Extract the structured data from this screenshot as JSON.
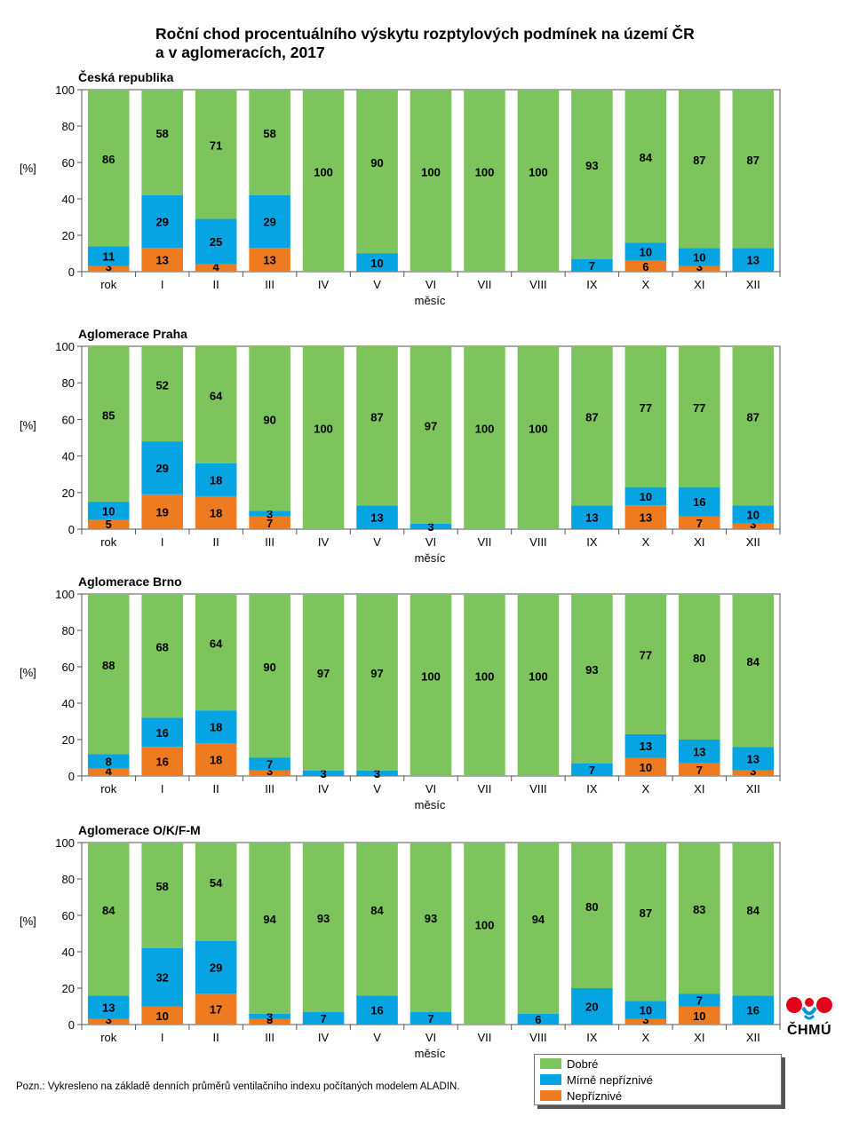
{
  "title_line1": "Roční chod procentuálního výskytu rozptylových podmínek na území ČR",
  "title_line2": "a v aglomeracích, 2017",
  "note": "Pozn.: Vykresleno na základě denních průměrů ventilačního indexu počítaných modelem ALADIN.",
  "logo_text": "ČHMÚ",
  "legend": [
    {
      "label": "Dobré",
      "color": "#7cc45b"
    },
    {
      "label": "Mírně nepříznivé",
      "color": "#06a4e2"
    },
    {
      "label": "Nepříznivé",
      "color": "#ef7b21"
    }
  ],
  "chart_data": [
    {
      "type": "bar",
      "title": "Česká republika",
      "xlabel": "měsíc",
      "ylabel": "[%]",
      "ylim": [
        0,
        100
      ],
      "yticks": [
        0,
        20,
        40,
        60,
        80,
        100
      ],
      "categories": [
        "rok",
        "I",
        "II",
        "III",
        "IV",
        "V",
        "VI",
        "VII",
        "VIII",
        "IX",
        "X",
        "XI",
        "XII"
      ],
      "series": [
        {
          "name": "Nepříznivé",
          "values": [
            3,
            13,
            4,
            13,
            0,
            0,
            0,
            0,
            0,
            0,
            6,
            3,
            0
          ]
        },
        {
          "name": "Mírně nepříznivé",
          "values": [
            11,
            29,
            25,
            29,
            0,
            10,
            0,
            0,
            0,
            7,
            10,
            10,
            13
          ]
        },
        {
          "name": "Dobré",
          "values": [
            86,
            58,
            71,
            58,
            100,
            90,
            100,
            100,
            100,
            93,
            84,
            87,
            87
          ]
        }
      ]
    },
    {
      "type": "bar",
      "title": "Aglomerace Praha",
      "xlabel": "měsíc",
      "ylabel": "[%]",
      "ylim": [
        0,
        100
      ],
      "yticks": [
        0,
        20,
        40,
        60,
        80,
        100
      ],
      "categories": [
        "rok",
        "I",
        "II",
        "III",
        "IV",
        "V",
        "VI",
        "VII",
        "VIII",
        "IX",
        "X",
        "XI",
        "XII"
      ],
      "series": [
        {
          "name": "Nepříznivé",
          "values": [
            5,
            19,
            18,
            7,
            0,
            0,
            0,
            0,
            0,
            0,
            13,
            7,
            3
          ]
        },
        {
          "name": "Mírně nepříznivé",
          "values": [
            10,
            29,
            18,
            3,
            0,
            13,
            3,
            0,
            0,
            13,
            10,
            16,
            10
          ]
        },
        {
          "name": "Dobré",
          "values": [
            85,
            52,
            64,
            90,
            100,
            87,
            97,
            100,
            100,
            87,
            77,
            77,
            87
          ]
        }
      ]
    },
    {
      "type": "bar",
      "title": "Aglomerace Brno",
      "xlabel": "měsíc",
      "ylabel": "[%]",
      "ylim": [
        0,
        100
      ],
      "yticks": [
        0,
        20,
        40,
        60,
        80,
        100
      ],
      "categories": [
        "rok",
        "I",
        "II",
        "III",
        "IV",
        "V",
        "VI",
        "VII",
        "VIII",
        "IX",
        "X",
        "XI",
        "XII"
      ],
      "series": [
        {
          "name": "Nepříznivé",
          "values": [
            4,
            16,
            18,
            3,
            0,
            0,
            0,
            0,
            0,
            0,
            10,
            7,
            3
          ]
        },
        {
          "name": "Mírně nepříznivé",
          "values": [
            8,
            16,
            18,
            7,
            3,
            3,
            0,
            0,
            0,
            7,
            13,
            13,
            13
          ]
        },
        {
          "name": "Dobré",
          "values": [
            88,
            68,
            64,
            90,
            97,
            97,
            100,
            100,
            100,
            93,
            77,
            80,
            84
          ]
        }
      ]
    },
    {
      "type": "bar",
      "title": "Aglomerace O/K/F-M",
      "xlabel": "měsíc",
      "ylabel": "[%]",
      "ylim": [
        0,
        100
      ],
      "yticks": [
        0,
        20,
        40,
        60,
        80,
        100
      ],
      "categories": [
        "rok",
        "I",
        "II",
        "III",
        "IV",
        "V",
        "VI",
        "VII",
        "VIII",
        "IX",
        "X",
        "XI",
        "XII"
      ],
      "series": [
        {
          "name": "Nepříznivé",
          "values": [
            3,
            10,
            17,
            3,
            0,
            0,
            0,
            0,
            0,
            0,
            3,
            10,
            0
          ]
        },
        {
          "name": "Mírně nepříznivé",
          "values": [
            13,
            32,
            29,
            3,
            7,
            16,
            7,
            0,
            6,
            20,
            10,
            7,
            16
          ]
        },
        {
          "name": "Dobré",
          "values": [
            84,
            58,
            54,
            94,
            93,
            84,
            93,
            100,
            94,
            80,
            87,
            83,
            84
          ]
        }
      ]
    }
  ]
}
